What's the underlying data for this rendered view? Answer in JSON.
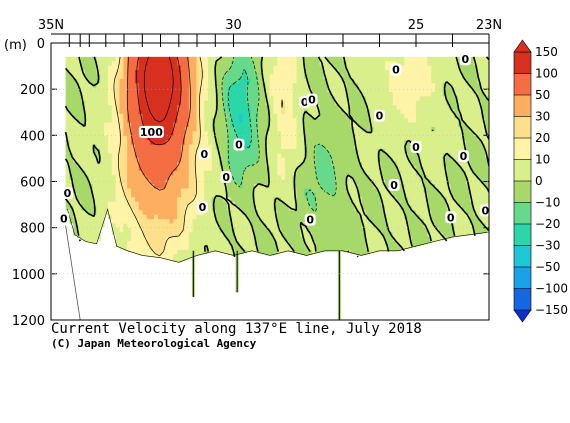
{
  "chart_data": {
    "type": "heatmap",
    "title": "Current Velocity along 137°E line, July 2018",
    "credit": "(C) Japan Meteorological Agency",
    "y_unit_label": "(m)",
    "x_axis": {
      "ticks": [
        {
          "value": 35,
          "label": "35N"
        },
        {
          "value": 30,
          "label": "30"
        },
        {
          "value": 25,
          "label": "25"
        },
        {
          "value": 23,
          "label": "23N"
        }
      ],
      "xlim": [
        35,
        23
      ],
      "station_lats": [
        34.5,
        34.2,
        33.95,
        33.5,
        33.0,
        32.5,
        32.0,
        31.5,
        31.0,
        30.5,
        30.0,
        29.0,
        28.0,
        27.0,
        26.0,
        25.0,
        24.0,
        23.0
      ]
    },
    "y_axis": {
      "ticks": [
        0,
        200,
        400,
        600,
        800,
        1000,
        1200
      ],
      "ylim": [
        0,
        1200
      ],
      "inverted": true
    },
    "colorbar": {
      "levels": [
        150,
        100,
        50,
        30,
        20,
        10,
        0,
        -10,
        -20,
        -30,
        -50,
        -100,
        -150
      ],
      "colors": [
        "#d7301f",
        "#f46d43",
        "#fdae61",
        "#fee08b",
        "#fff3a8",
        "#d9ef8b",
        "#a6d96a",
        "#66d98a",
        "#2bd7a8",
        "#1fc6d6",
        "#19a2e8",
        "#1467e0",
        "#0a2fd6"
      ]
    },
    "contour_labels": [
      {
        "lat": 32.25,
        "depth": 385,
        "text": "100"
      },
      {
        "lat": 34.55,
        "depth": 650,
        "text": "0"
      },
      {
        "lat": 34.65,
        "depth": 760,
        "text": "0"
      },
      {
        "lat": 30.8,
        "depth": 480,
        "text": "0"
      },
      {
        "lat": 30.2,
        "depth": 580,
        "text": "0"
      },
      {
        "lat": 30.85,
        "depth": 710,
        "text": "0"
      },
      {
        "lat": 29.85,
        "depth": 440,
        "text": "0"
      },
      {
        "lat": 28.05,
        "depth": 255,
        "text": "0"
      },
      {
        "lat": 27.85,
        "depth": 245,
        "text": "0"
      },
      {
        "lat": 27.9,
        "depth": 765,
        "text": "0"
      },
      {
        "lat": 26.0,
        "depth": 315,
        "text": "0"
      },
      {
        "lat": 25.6,
        "depth": 615,
        "text": "0"
      },
      {
        "lat": 25.55,
        "depth": 115,
        "text": "0"
      },
      {
        "lat": 25.0,
        "depth": 450,
        "text": "0"
      },
      {
        "lat": 24.05,
        "depth": 755,
        "text": "0"
      },
      {
        "lat": 23.7,
        "depth": 490,
        "text": "0"
      },
      {
        "lat": 23.65,
        "depth": 70,
        "text": "0"
      },
      {
        "lat": 23.1,
        "depth": 725,
        "text": "0"
      }
    ],
    "velocity_field": {
      "note": "cm/s, positive eastward; features read from the section",
      "cores": [
        {
          "lat_center": 32.05,
          "lat_halfwidth": 0.65,
          "depth_center": 140,
          "depth_halfwidth": 260,
          "peak": 160
        },
        {
          "lat_center": 32.05,
          "lat_halfwidth": 1.0,
          "depth_center": 400,
          "depth_halfwidth": 450,
          "peak": 60
        },
        {
          "lat_center": 29.8,
          "lat_halfwidth": 0.5,
          "depth_center": 300,
          "depth_halfwidth": 250,
          "peak": -30
        },
        {
          "lat_center": 28.6,
          "lat_halfwidth": 0.4,
          "depth_center": 250,
          "depth_halfwidth": 300,
          "peak": 20
        },
        {
          "lat_center": 25.2,
          "lat_halfwidth": 0.9,
          "depth_center": 150,
          "depth_halfwidth": 250,
          "peak": 15
        },
        {
          "lat_center": 27.5,
          "lat_halfwidth": 0.6,
          "depth_center": 600,
          "depth_halfwidth": 300,
          "peak": -12
        }
      ],
      "bottom_depth": [
        {
          "lat": 34.55,
          "depth": 720
        },
        {
          "lat": 34.35,
          "depth": 830
        },
        {
          "lat": 34.05,
          "depth": 860
        },
        {
          "lat": 33.75,
          "depth": 870
        },
        {
          "lat": 33.45,
          "depth": 720
        },
        {
          "lat": 33.2,
          "depth": 880
        },
        {
          "lat": 32.9,
          "depth": 900
        },
        {
          "lat": 32.5,
          "depth": 920
        },
        {
          "lat": 32.0,
          "depth": 930
        },
        {
          "lat": 31.5,
          "depth": 950
        },
        {
          "lat": 31.0,
          "depth": 920
        },
        {
          "lat": 30.5,
          "depth": 900
        },
        {
          "lat": 30.0,
          "depth": 920
        },
        {
          "lat": 29.5,
          "depth": 900
        },
        {
          "lat": 29.0,
          "depth": 920
        },
        {
          "lat": 28.5,
          "depth": 900
        },
        {
          "lat": 28.0,
          "depth": 920
        },
        {
          "lat": 27.5,
          "depth": 900
        },
        {
          "lat": 27.0,
          "depth": 900
        },
        {
          "lat": 26.5,
          "depth": 920
        },
        {
          "lat": 26.0,
          "depth": 900
        },
        {
          "lat": 25.5,
          "depth": 900
        },
        {
          "lat": 25.0,
          "depth": 880
        },
        {
          "lat": 24.5,
          "depth": 860
        },
        {
          "lat": 24.0,
          "depth": 840
        },
        {
          "lat": 23.5,
          "depth": 830
        },
        {
          "lat": 23.05,
          "depth": 820
        }
      ],
      "deep_casts": [
        {
          "lat": 27.1,
          "depth": 1200
        },
        {
          "lat": 29.9,
          "depth": 1080
        },
        {
          "lat": 31.1,
          "depth": 1100
        }
      ]
    }
  }
}
